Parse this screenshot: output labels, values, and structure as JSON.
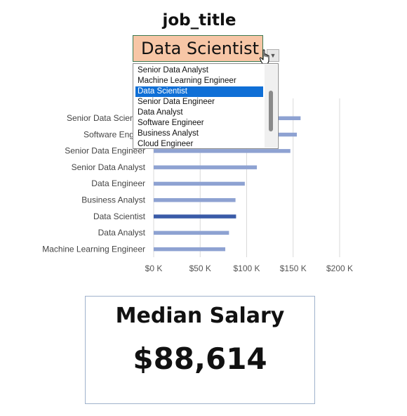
{
  "filter": {
    "title": "job_title",
    "selected_value": "Data Scientist",
    "options": [
      "Senior Data Analyst",
      "Machine Learning Engineer",
      "Data Scientist",
      "Senior Data Engineer",
      "Data Analyst",
      "Software Engineer",
      "Business Analyst",
      "Cloud Engineer"
    ],
    "selected_index": 2
  },
  "chart_data": {
    "type": "bar",
    "orientation": "horizontal",
    "categories": [
      "Senior Data Scientist",
      "Software Engineer",
      "Senior Data Engineer",
      "Senior Data Analyst",
      "Data Engineer",
      "Business Analyst",
      "Data Scientist",
      "Data Analyst",
      "Machine Learning Engineer"
    ],
    "category_labels": [
      "Senior Data Scientist",
      "Software Engine",
      "Senior Data Engineer",
      "Senior Data Analyst",
      "Data Engineer",
      "Business Analyst",
      "Data Scientist",
      "Data Analyst",
      "Machine Learning Engineer"
    ],
    "values": [
      158000,
      154000,
      147000,
      111000,
      98000,
      88000,
      88614,
      81000,
      77000
    ],
    "highlight_category": "Data Scientist",
    "xlim": [
      0,
      200000
    ],
    "x_ticks": [
      0,
      50000,
      100000,
      150000,
      200000
    ],
    "x_tick_labels": [
      "$0 K",
      "$50 K",
      "$100 K",
      "$150 K",
      "$200 K"
    ],
    "grid": true,
    "colors": {
      "bar": "#8ea2d2",
      "highlight": "#3a5ba8",
      "grid": "#d9d9d9"
    }
  },
  "summary": {
    "label": "Median Salary",
    "value": "$88,614"
  },
  "colors": {
    "dropdown_bg": "#f7c6a6",
    "dropdown_border": "#3b7a52",
    "selection": "#0f6fd6",
    "card_border": "#9fb2cc"
  }
}
